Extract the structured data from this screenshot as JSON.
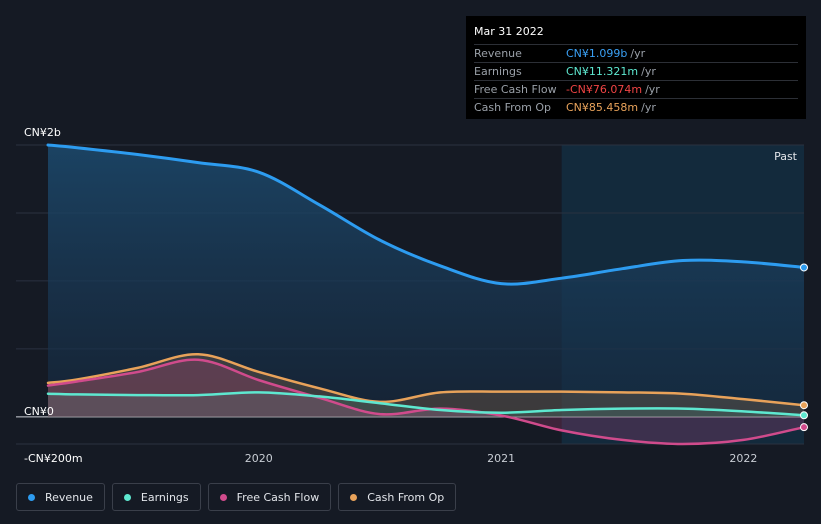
{
  "colors": {
    "revenue": "#2d9cf0",
    "earnings": "#5ee8d0",
    "free_cash_flow": "#d04b8c",
    "cash_from_op": "#e8a25a",
    "background": "#151a24",
    "grid": "#2a3140"
  },
  "tooltip": {
    "date": "Mar 31 2022",
    "rows": [
      {
        "label": "Revenue",
        "value": "CN¥1.099b",
        "unit": "/yr",
        "color": "#3aa0f5"
      },
      {
        "label": "Earnings",
        "value": "CN¥11.321m",
        "unit": "/yr",
        "color": "#5ee8d0"
      },
      {
        "label": "Free Cash Flow",
        "value": "-CN¥76.074m",
        "unit": "/yr",
        "color": "#f04444"
      },
      {
        "label": "Cash From Op",
        "value": "CN¥85.458m",
        "unit": "/yr",
        "color": "#e8a25a"
      }
    ]
  },
  "past_label": "Past",
  "legend": {
    "items": [
      {
        "label": "Revenue",
        "color": "#2d9cf0"
      },
      {
        "label": "Earnings",
        "color": "#5ee8d0"
      },
      {
        "label": "Free Cash Flow",
        "color": "#d04b8c"
      },
      {
        "label": "Cash From Op",
        "color": "#e8a25a"
      }
    ]
  },
  "chart_data": {
    "type": "line",
    "y_tick_labels": [
      "CN¥2b",
      "CN¥0",
      "-CN¥200m"
    ],
    "y_ticks": [
      2000,
      0,
      -200
    ],
    "ylim": [
      -200,
      2000
    ],
    "x_tick_labels": [
      "2020",
      "2021",
      "2022"
    ],
    "x_ticks": [
      2020,
      2021,
      2022
    ],
    "xlim": [
      2019.13,
      2022.25
    ],
    "grid": true,
    "past_region_start": 2021.25,
    "legend_position": "bottom",
    "units": "CN¥ millions",
    "x": [
      2019.13,
      2019.25,
      2019.5,
      2019.75,
      2020.0,
      2020.25,
      2020.5,
      2020.75,
      2021.0,
      2021.25,
      2021.5,
      2021.75,
      2022.0,
      2022.25
    ],
    "series": [
      {
        "name": "Revenue",
        "color": "#2d9cf0",
        "values": [
          2000,
          1980,
          1930,
          1870,
          1800,
          1560,
          1300,
          1110,
          980,
          1020,
          1090,
          1150,
          1140,
          1099
        ]
      },
      {
        "name": "Earnings",
        "color": "#5ee8d0",
        "values": [
          170,
          165,
          160,
          160,
          180,
          150,
          100,
          50,
          30,
          50,
          60,
          60,
          40,
          11.3
        ]
      },
      {
        "name": "Free Cash Flow",
        "color": "#d04b8c",
        "values": [
          230,
          260,
          330,
          420,
          270,
          140,
          20,
          60,
          10,
          -100,
          -170,
          -200,
          -170,
          -76.1
        ]
      },
      {
        "name": "Cash From Op",
        "color": "#e8a25a",
        "values": [
          250,
          275,
          360,
          460,
          330,
          210,
          110,
          180,
          185,
          185,
          180,
          170,
          130,
          85.5
        ]
      }
    ]
  }
}
